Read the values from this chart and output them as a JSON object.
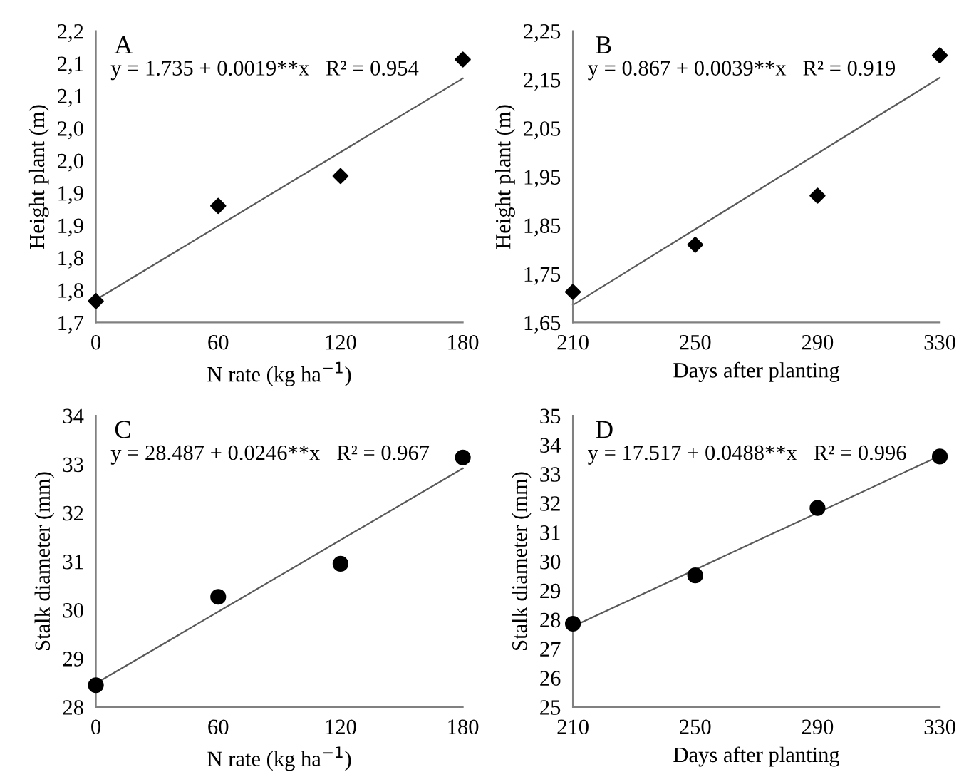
{
  "chart_data": [
    {
      "type": "scatter",
      "title": "A",
      "xlabel": "N rate (kg ha$^{−1}$)",
      "ylabel": "Height plant (m)",
      "annotations": [
        "y = 1.735 + 0.0019**x   R² = 0.954"
      ],
      "marker": "diamond",
      "grid": false,
      "xlim": [
        0,
        180
      ],
      "xticks": [
        0,
        60,
        120,
        180
      ],
      "ylim": [
        1.7,
        2.15
      ],
      "yticks": [
        {
          "value": 1.7,
          "label": "1,7"
        },
        {
          "value": 1.75,
          "label": "1,8"
        },
        {
          "value": 1.8,
          "label": "1,8"
        },
        {
          "value": 1.85,
          "label": "1,9"
        },
        {
          "value": 1.9,
          "label": "1,9"
        },
        {
          "value": 1.95,
          "label": "2,0"
        },
        {
          "value": 2.0,
          "label": "2,0"
        },
        {
          "value": 2.05,
          "label": "2,1"
        },
        {
          "value": 2.1,
          "label": "2,1"
        },
        {
          "value": 2.15,
          "label": "2,2"
        }
      ],
      "series": [
        {
          "color": "#000000",
          "x": [
            0,
            60,
            120,
            180
          ],
          "values": [
            1.733,
            1.88,
            1.926,
            2.106
          ]
        },
        {
          "type": "line",
          "color": "#595959",
          "marker": "none",
          "x": [
            0,
            180
          ],
          "values": [
            1.735,
            2.077
          ]
        }
      ]
    },
    {
      "type": "scatter",
      "title": "B",
      "xlabel": "Days after planting",
      "ylabel": "Height plant (m)",
      "annotations": [
        "y = 0.867 + 0.0039**x   R² = 0.919"
      ],
      "marker": "diamond",
      "grid": false,
      "xlim": [
        210,
        330
      ],
      "xticks": [
        210,
        250,
        290,
        330
      ],
      "ylim": [
        1.65,
        2.25
      ],
      "yticks": [
        {
          "value": 1.65,
          "label": "1,65"
        },
        {
          "value": 1.75,
          "label": "1,75"
        },
        {
          "value": 1.85,
          "label": "1,85"
        },
        {
          "value": 1.95,
          "label": "1,95"
        },
        {
          "value": 2.05,
          "label": "2,05"
        },
        {
          "value": 2.15,
          "label": "2,15"
        },
        {
          "value": 2.25,
          "label": "2,25"
        }
      ],
      "series": [
        {
          "color": "#000000",
          "x": [
            210,
            250,
            290,
            330
          ],
          "values": [
            1.713,
            1.81,
            1.911,
            2.2
          ]
        },
        {
          "type": "line",
          "color": "#595959",
          "marker": "none",
          "x": [
            210,
            330
          ],
          "values": [
            1.686,
            2.154
          ]
        }
      ]
    },
    {
      "type": "scatter",
      "title": "C",
      "xlabel": "N rate (kg ha$^{−1}$)",
      "ylabel": "Stalk diameter (mm)",
      "annotations": [
        "y = 28.487 + 0.0246**x   R² = 0.967"
      ],
      "marker": "circle",
      "grid": false,
      "xlim": [
        0,
        180
      ],
      "xticks": [
        0,
        60,
        120,
        180
      ],
      "ylim": [
        28,
        34
      ],
      "yticks": [
        28,
        29,
        30,
        31,
        32,
        33,
        34
      ],
      "series": [
        {
          "color": "#000000",
          "x": [
            0,
            60,
            120,
            180
          ],
          "values": [
            28.45,
            30.27,
            30.95,
            33.14
          ]
        },
        {
          "type": "line",
          "color": "#595959",
          "marker": "none",
          "x": [
            0,
            180
          ],
          "values": [
            28.487,
            32.915
          ]
        }
      ]
    },
    {
      "type": "scatter",
      "title": "D",
      "xlabel": "Days after planting",
      "ylabel": "Stalk diameter (mm)",
      "annotations": [
        "y = 17.517 + 0.0488**x   R² = 0.996"
      ],
      "marker": "circle",
      "grid": false,
      "xlim": [
        210,
        330
      ],
      "xticks": [
        210,
        250,
        290,
        330
      ],
      "ylim": [
        25,
        35
      ],
      "yticks": [
        25,
        26,
        27,
        28,
        29,
        30,
        31,
        32,
        33,
        34,
        35
      ],
      "series": [
        {
          "color": "#000000",
          "x": [
            210,
            250,
            290,
            330
          ],
          "values": [
            27.86,
            29.52,
            31.83,
            33.6
          ]
        },
        {
          "type": "line",
          "color": "#595959",
          "marker": "none",
          "x": [
            210,
            330
          ],
          "values": [
            27.765,
            33.621
          ]
        }
      ]
    }
  ]
}
